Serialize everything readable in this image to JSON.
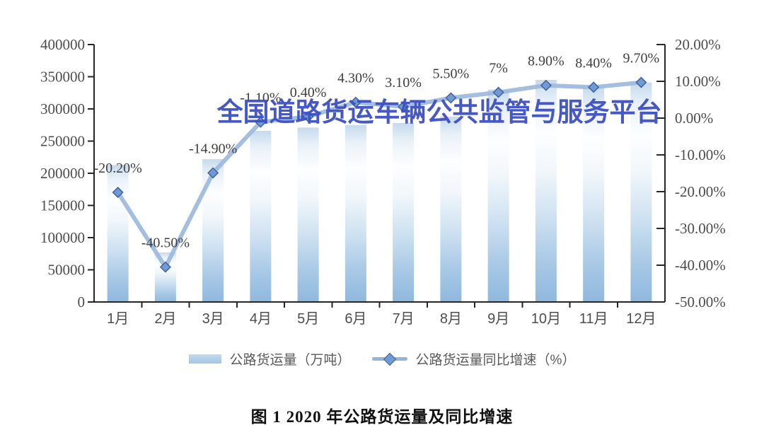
{
  "watermark": {
    "text": "全国道路货运车辆公共监管与服务平台",
    "color": "#3D50C3"
  },
  "caption": "图 1  2020 年公路货运量及同比增速",
  "legend": [
    {
      "label": "公路货运量（万吨）",
      "swatch": "bar-swatch",
      "color": "#A7C9E5"
    },
    {
      "label": "公路货运量同比增速（%）",
      "swatch": "line-diamond-swatch",
      "color": "#95B3D7"
    }
  ],
  "chart_data": {
    "type": "bar",
    "combo": "bar+line",
    "categories": [
      "1月",
      "2月",
      "3月",
      "4月",
      "5月",
      "6月",
      "7月",
      "8月",
      "9月",
      "10月",
      "11月",
      "12月"
    ],
    "series": [
      {
        "name": "公路货运量（万吨）",
        "type": "bar",
        "axis": "left",
        "values": [
          213000,
          77000,
          222000,
          266000,
          271000,
          275000,
          278000,
          288000,
          330000,
          345000,
          334000,
          341000
        ]
      },
      {
        "name": "公路货运量同比增速（%）",
        "type": "line",
        "axis": "right",
        "values": [
          -20.2,
          -40.5,
          -14.9,
          -1.1,
          0.4,
          4.3,
          3.1,
          5.5,
          7,
          8.9,
          8.4,
          9.7
        ],
        "point_labels": [
          "-20.20%",
          "-40.50%",
          "-14.90%",
          "-1.10%",
          "0.40%",
          "4.30%",
          "3.10%",
          "5.50%",
          "7%",
          "8.90%",
          "8.40%",
          "9.70%"
        ]
      }
    ],
    "left_axis": {
      "min": 0,
      "max": 400000,
      "step": 50000,
      "tick_labels": [
        "400000",
        "350000",
        "300000",
        "250000",
        "200000",
        "150000",
        "100000",
        "50000",
        "0"
      ]
    },
    "right_axis": {
      "min": -50,
      "max": 20,
      "step": 10,
      "tick_labels": [
        "20.00%",
        "10.00%",
        "0.00%",
        "-10.00%",
        "-20.00%",
        "-30.00%",
        "-40.00%",
        "-50.00%"
      ]
    },
    "grid": false,
    "legend_position": "bottom"
  },
  "colors": {
    "bar_top": "#C5DAEE",
    "bar_mid": "#FDFEFF",
    "bar_bottom": "#8FB8DE",
    "line": "#9CB8DC",
    "marker_fill": "#6F9AD3",
    "marker_stroke": "#41639C",
    "axis": "#262626",
    "axis_text": "#4D4D4D",
    "data_label": "#3F3F3F"
  }
}
